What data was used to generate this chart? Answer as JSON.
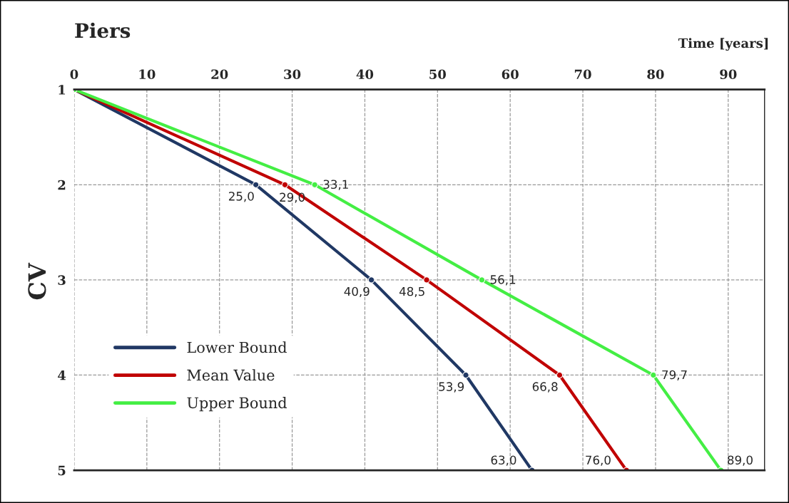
{
  "chart_data": {
    "type": "line",
    "title": "Piers",
    "xlabel": "Time [years]",
    "ylabel": "CV",
    "xlim": [
      0,
      95
    ],
    "xticks": [
      0,
      10,
      20,
      30,
      40,
      50,
      60,
      70,
      80,
      90
    ],
    "ylim": [
      5,
      1
    ],
    "yticks": [
      1,
      2,
      3,
      4,
      5
    ],
    "grid": true,
    "line_style": "solid",
    "marker": "circle",
    "legend": "bottom left",
    "series": [
      {
        "name": "Lower Bound",
        "color": "#203864",
        "x": [
          0,
          25.0,
          40.9,
          53.9,
          63.0
        ],
        "values": [
          1,
          2,
          3,
          4,
          5
        ]
      },
      {
        "name": "Mean Value",
        "color": "#c00000",
        "x": [
          0,
          29.0,
          48.5,
          66.8,
          76.0
        ],
        "values": [
          1,
          2,
          3,
          4,
          5
        ]
      },
      {
        "name": "Upper Bound",
        "color": "#44ee44",
        "x": [
          0,
          33.1,
          56.1,
          79.7,
          89.0
        ],
        "values": [
          1,
          2,
          3,
          4,
          5
        ]
      }
    ],
    "annotations": [
      {
        "text": "25,0",
        "x": 25.0,
        "y": 2
      },
      {
        "text": "40,9",
        "x": 40.9,
        "y": 3
      },
      {
        "text": "53,9",
        "x": 53.9,
        "y": 4
      },
      {
        "text": "63,0",
        "x": 63.0,
        "y": 5
      },
      {
        "text": "29,0",
        "x": 29.0,
        "y": 2
      },
      {
        "text": "48,5",
        "x": 48.5,
        "y": 3
      },
      {
        "text": "66,8",
        "x": 66.8,
        "y": 4
      },
      {
        "text": "76,0",
        "x": 76.0,
        "y": 5
      },
      {
        "text": "33,1",
        "x": 33.1,
        "y": 2
      },
      {
        "text": "56,1",
        "x": 56.1,
        "y": 3
      },
      {
        "text": "79,7",
        "x": 79.7,
        "y": 4
      },
      {
        "text": "89,0",
        "x": 89.0,
        "y": 5
      }
    ]
  }
}
